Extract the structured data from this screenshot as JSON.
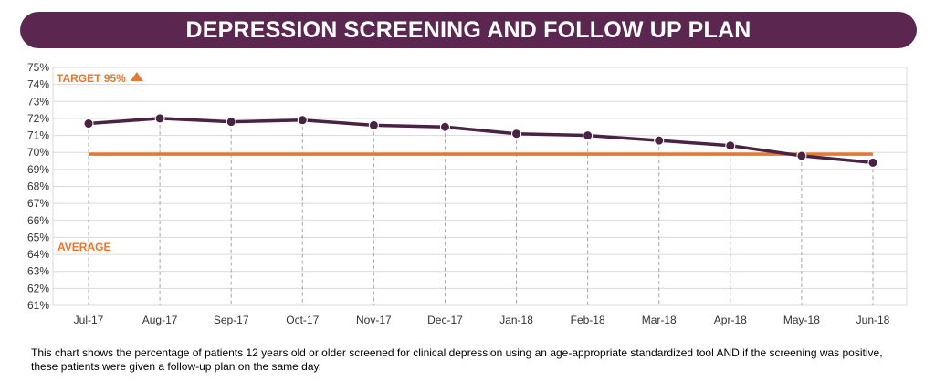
{
  "header": {
    "title": "DEPRESSION SCREENING AND FOLLOW UP PLAN"
  },
  "caption": "This chart shows the percentage of patients 12 years old or older screened for clinical depression using an age-appropriate standardized tool AND if the screening was positive, these patients were given a follow-up plan on the same day.",
  "colors": {
    "title_bg": "#5b2750",
    "series_line": "#4a2244",
    "reference_line": "#e8782f",
    "axis_text": "#333333",
    "grid": "#d9d9d9"
  },
  "chart_data": {
    "type": "line",
    "categories": [
      "Jul-17",
      "Aug-17",
      "Sep-17",
      "Oct-17",
      "Nov-17",
      "Dec-17",
      "Jan-18",
      "Feb-18",
      "Mar-18",
      "Apr-18",
      "May-18",
      "Jun-18"
    ],
    "series": [
      {
        "values": [
          71.7,
          72.0,
          71.8,
          71.9,
          71.6,
          71.5,
          71.1,
          71.0,
          70.7,
          70.4,
          69.8,
          69.4
        ]
      }
    ],
    "reference_line": {
      "value": 69.9
    },
    "ylim": [
      61,
      75
    ],
    "yticks": [
      "61%",
      "62%",
      "63%",
      "64%",
      "65%",
      "66%",
      "67%",
      "68%",
      "69%",
      "70%",
      "71%",
      "72%",
      "73%",
      "74%",
      "75%"
    ],
    "annotations": {
      "target": "TARGET 95%",
      "average": "AVERAGE"
    },
    "grid": true,
    "legend": false
  }
}
